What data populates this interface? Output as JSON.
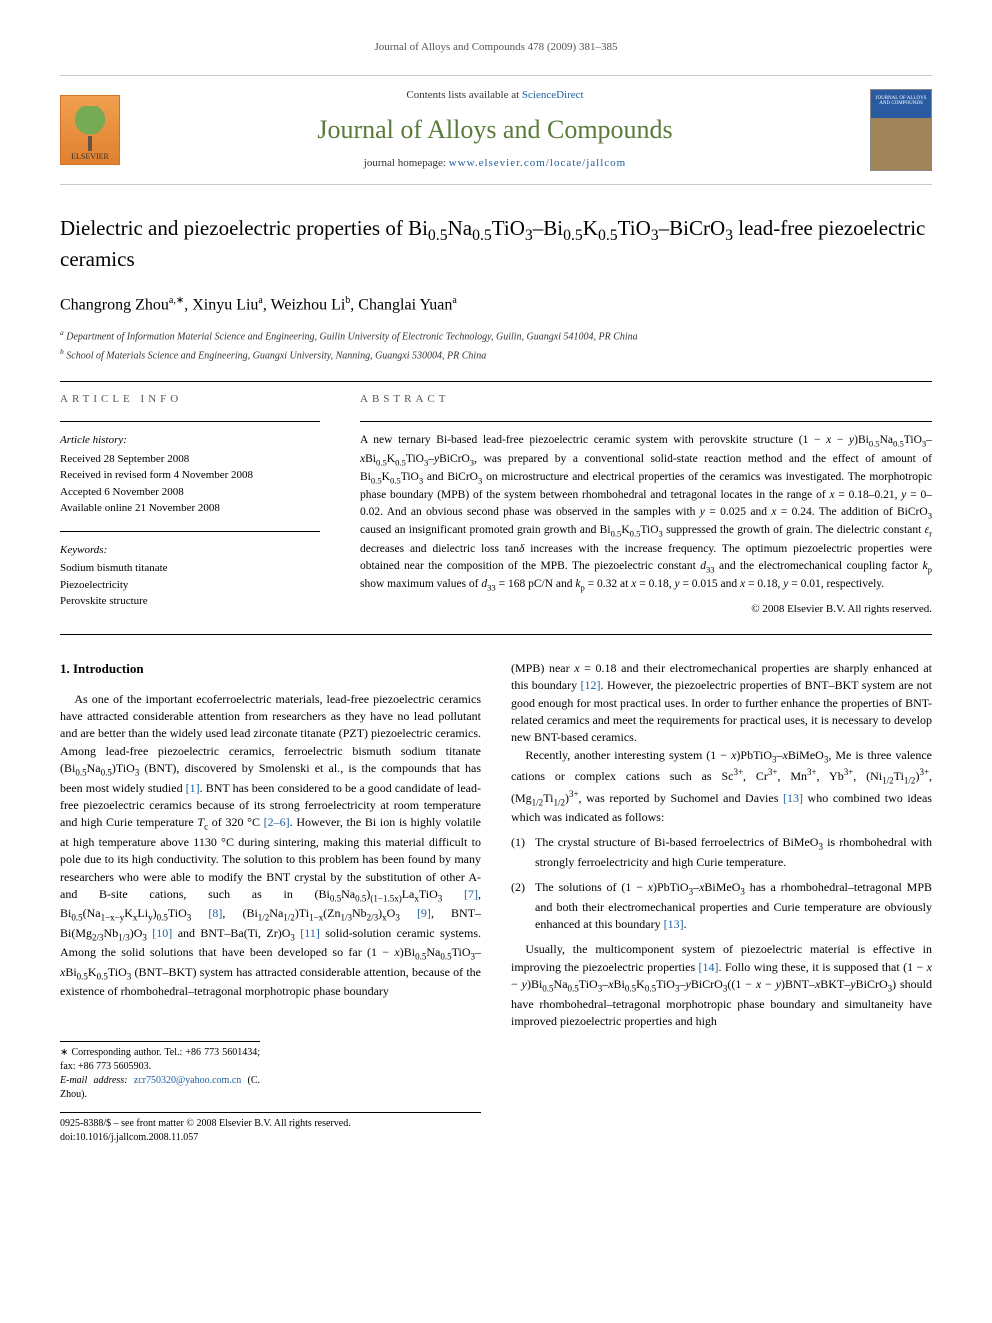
{
  "header": {
    "journal_ref": "Journal of Alloys and Compounds 478 (2009) 381–385",
    "contents_text": "Contents lists available at ",
    "sciencedirect": "ScienceDirect",
    "journal_title": "Journal of Alloys and Compounds",
    "homepage_label": "journal homepage: ",
    "homepage_url": "www.elsevier.com/locate/jallcom",
    "elsevier_label": "ELSEVIER",
    "cover_text": "JOURNAL OF ALLOYS AND COMPOUNDS"
  },
  "article": {
    "title_html": "Dielectric and piezoelectric properties of Bi<sub>0.5</sub>Na<sub>0.5</sub>TiO<sub>3</sub>–Bi<sub>0.5</sub>K<sub>0.5</sub>TiO<sub>3</sub>–BiCrO<sub>3</sub> lead-free piezoelectric ceramics",
    "authors": [
      {
        "name": "Changrong Zhou",
        "sup": "a,∗"
      },
      {
        "name": "Xinyu Liu",
        "sup": "a"
      },
      {
        "name": "Weizhou Li",
        "sup": "b"
      },
      {
        "name": "Changlai Yuan",
        "sup": "a"
      }
    ],
    "affiliations": [
      {
        "mark": "a",
        "text": "Department of Information Material Science and Engineering, Guilin University of Electronic Technology, Guilin, Guangxi 541004, PR China"
      },
      {
        "mark": "b",
        "text": "School of Materials Science and Engineering, Guangxi University, Nanning, Guangxi 530004, PR China"
      }
    ]
  },
  "info": {
    "label": "article info",
    "history_heading": "Article history:",
    "history": [
      "Received 28 September 2008",
      "Received in revised form 4 November 2008",
      "Accepted 6 November 2008",
      "Available online 21 November 2008"
    ],
    "keywords_heading": "Keywords:",
    "keywords": [
      "Sodium bismuth titanate",
      "Piezoelectricity",
      "Perovskite structure"
    ]
  },
  "abstract": {
    "label": "abstract",
    "text_html": "A new ternary Bi-based lead-free piezoelectric ceramic system with perovskite structure (1 − <i>x</i> − <i>y</i>)Bi<sub>0.5</sub>Na<sub>0.5</sub>TiO<sub>3</sub>–<i>x</i>Bi<sub>0.5</sub>K<sub>0.5</sub>TiO<sub>3</sub>–<i>y</i>BiCrO<sub>3</sub>, was prepared by a conventional solid-state reaction method and the effect of amount of Bi<sub>0.5</sub>K<sub>0.5</sub>TiO<sub>3</sub> and BiCrO<sub>3</sub> on microstructure and electrical properties of the ceramics was investigated. The morphotropic phase boundary (MPB) of the system between rhombohedral and tetragonal locates in the range of <i>x</i> = 0.18–0.21, <i>y</i> = 0–0.02. And an obvious second phase was observed in the samples with <i>y</i> = 0.025 and <i>x</i> = 0.24. The addition of BiCrO<sub>3</sub> caused an insignificant promoted grain growth and Bi<sub>0.5</sub>K<sub>0.5</sub>TiO<sub>3</sub> suppressed the growth of grain. The dielectric constant <i>ε</i><sub>r</sub> decreases and dielectric loss tan<i>δ</i> increases with the increase frequency. The optimum piezoelectric properties were obtained near the composition of the MPB. The piezoelectric constant <i>d</i><sub>33</sub> and the electromechanical coupling factor <i>k</i><sub>p</sub> show maximum values of <i>d</i><sub>33</sub> = 168 pC/N and <i>k</i><sub>p</sub> = 0.32 at <i>x</i> = 0.18, <i>y</i> = 0.015 and <i>x</i> = 0.18, <i>y</i> = 0.01, respectively.",
    "copyright": "© 2008 Elsevier B.V. All rights reserved."
  },
  "body": {
    "intro_heading": "1. Introduction",
    "col1_para_html": "As one of the important ecoferroelectric materials, lead-free piezoelectric ceramics have attracted considerable attention from researchers as they have no lead pollutant and are better than the widely used lead zirconate titanate (PZT) piezoelectric ceramics. Among lead-free piezoelectric ceramics, ferroelectric bismuth sodium titanate (Bi<sub>0.5</sub>Na<sub>0.5</sub>)TiO<sub>3</sub> (BNT), discovered by Smolenski et al., is the compounds that has been most widely studied <span class='ref-link'>[1]</span>. BNT has been considered to be a good candidate of lead-free piezoelectric ceramics because of its strong ferroelectricity at room temperature and high Curie temperature <i>T</i><sub>c</sub> of 320 °C <span class='ref-link'>[2–6]</span>. However, the Bi ion is highly volatile at high temperature above 1130 °C during sintering, making this material difficult to pole due to its high conductivity. The solution to this problem has been found by many researchers who were able to modify the BNT crystal by the substitution of other A- and B-site cations, such as in (Bi<sub>0.5</sub>Na<sub>0.5</sub>)<sub>(1−1.5x)</sub>La<sub>x</sub>TiO<sub>3</sub> <span class='ref-link'>[7]</span>, Bi<sub>0.5</sub>(Na<sub>1−x−y</sub>K<sub>x</sub>Li<sub>y</sub>)<sub>0.5</sub>TiO<sub>3</sub> <span class='ref-link'>[8]</span>, (Bi<sub>1/2</sub>Na<sub>1/2</sub>)Ti<sub>1−x</sub>(Zn<sub>1/3</sub>Nb<sub>2/3</sub>)<sub>x</sub>O<sub>3</sub> <span class='ref-link'>[9]</span>, BNT–Bi(Mg<sub>2/3</sub>Nb<sub>1/3</sub>)O<sub>3</sub> <span class='ref-link'>[10]</span> and BNT–Ba(Ti, Zr)O<sub>3</sub> <span class='ref-link'>[11]</span> solid-solution ceramic systems. Among the solid solutions that have been developed so far (1 − <i>x</i>)Bi<sub>0.5</sub>Na<sub>0.5</sub>TiO<sub>3</sub>–<i>x</i>Bi<sub>0.5</sub>K<sub>0.5</sub>TiO<sub>3</sub> (BNT–BKT) system has attracted considerable attention, because of the existence of rhombohedral–tetragonal morphotropic phase boundary",
    "col2_para1_html": "(MPB) near <i>x</i> = 0.18 and their electromechanical properties are sharply enhanced at this boundary <span class='ref-link'>[12]</span>. However, the piezoelectric properties of BNT–BKT system are not good enough for most practical uses. In order to further enhance the properties of BNT-related ceramics and meet the requirements for practical uses, it is necessary to develop new BNT-based ceramics.",
    "col2_para2_html": "Recently, another interesting system (1 − <i>x</i>)PbTiO<sub>3</sub>–<i>x</i>BiMeO<sub>3</sub>, Me is three valence cations or complex cations such as Sc<sup>3+</sup>, Cr<sup>3+</sup>, Mn<sup>3+</sup>, Yb<sup>3+</sup>, (Ni<sub>1/2</sub>Ti<sub>1/2</sub>)<sup>3+</sup>, (Mg<sub>1/2</sub>Ti<sub>1/2</sub>)<sup>3+</sup>, was reported by Suchomel and Davies <span class='ref-link'>[13]</span> who combined two ideas which was indicated as follows:",
    "list": [
      {
        "num": "(1)",
        "html": "The crystal structure of Bi-based ferroelectrics of BiMeO<sub>3</sub> is rhombohedral with strongly ferroelectricity and high Curie temperature."
      },
      {
        "num": "(2)",
        "html": "The solutions of (1 − <i>x</i>)PbTiO<sub>3</sub>–<i>x</i>BiMeO<sub>3</sub> has a rhombohedral–tetragonal MPB and both their electromechanical properties and Curie temperature are obviously enhanced at this boundary <span class='ref-link'>[13]</span>."
      }
    ],
    "col2_para3_html": "Usually, the multicomponent system of piezoelectric material is effective in improving the piezoelectric properties <span class='ref-link'>[14]</span>. Follo wing these, it is supposed that (1 − <i>x</i> − <i>y</i>)Bi<sub>0.5</sub>Na<sub>0.5</sub>TiO<sub>3</sub>–<i>x</i>Bi<sub>0.5</sub>K<sub>0.5</sub>TiO<sub>3</sub>–<i>y</i>BiCrO<sub>3</sub>((1 − <i>x</i> − <i>y</i>)BNT–<i>x</i>BKT–<i>y</i>BiCrO<sub>3</sub>) should have rhombohedral–tetragonal morphotropic phase boundary and simultaneity have improved piezoelectric properties and high"
  },
  "footer": {
    "corr_label": "∗ Corresponding author. Tel.: +86 773 5601434; fax: +86 773 5605903.",
    "email_label": "E-mail address: ",
    "email": "zcr750320@yahoo.com.cn",
    "email_who": " (C. Zhou).",
    "issn_line": "0925-8388/$ – see front matter © 2008 Elsevier B.V. All rights reserved.",
    "doi_line": "doi:10.1016/j.jallcom.2008.11.057"
  },
  "colors": {
    "link": "#2060a0",
    "journal_title": "#5a7a3a",
    "text": "#000000",
    "muted": "#555555"
  }
}
